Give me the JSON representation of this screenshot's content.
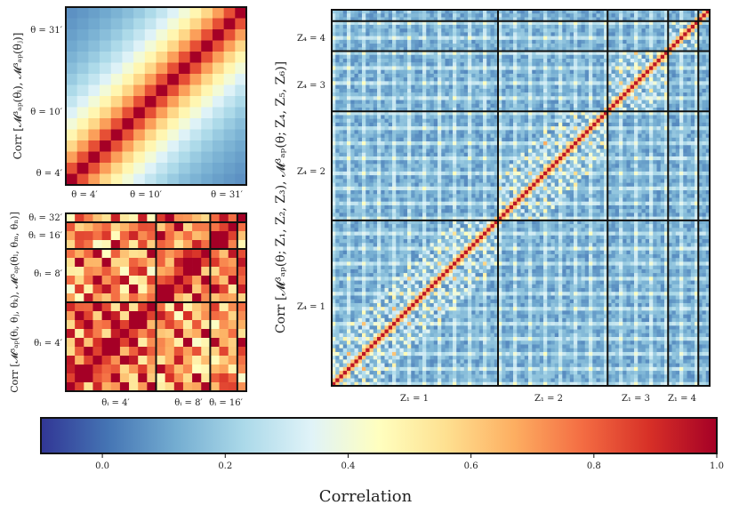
{
  "chart_data": [
    {
      "type": "heatmap",
      "name": "top-left",
      "ylabel": "Corr [𝓜³ₐₚ(θᵢ), 𝓜³ₐₚ(θⱼ)]",
      "grid_size": 16,
      "correlation_model": "exp(-|i-j| / 5.5)",
      "xticks": [
        "θ = 4′",
        "θ = 10′",
        "θ = 31′"
      ],
      "yticks": [
        "θ = 31′",
        "θ = 10′",
        "θ = 4′"
      ]
    },
    {
      "type": "heatmap",
      "name": "bottom-left",
      "ylabel": "Corr [𝓜³ₐₚ(θᵢ, θⱼ, θₖ), 𝓜³ₐₚ(θₗ, θₘ, θₙ)]",
      "grid_size": 20,
      "block_edges": [
        10,
        16,
        19
      ],
      "xticks": [
        "θᵢ = 4′",
        "θᵢ = 8′",
        "θᵢ = 16′"
      ],
      "yticks": [
        "θᵢ = 32′",
        "θₗ = 16′",
        "θₗ = 8′",
        "θₗ = 4′"
      ]
    },
    {
      "type": "heatmap",
      "name": "right",
      "ylabel": "Corr [𝓜³ₐₚ(θ; Z₁, Z₂, Z₃), 𝓜³ₐₚ(θ; Z₄, Z₅, Z₆)]",
      "grid_size": 100,
      "block_edges": [
        44,
        73,
        89,
        97
      ],
      "xticks": [
        "Z₁ = 1",
        "Z₁ = 2",
        "Z₁ = 3",
        "Z₁ = 4"
      ],
      "yticks": [
        "Z₄ = 4",
        "Z₄ = 3",
        "Z₄ = 2",
        "Z₄ = 1"
      ]
    }
  ],
  "colorbar": {
    "range": [
      -0.1,
      1.0
    ],
    "ticks": [
      "0.0",
      "0.2",
      "0.4",
      "0.6",
      "0.8",
      "1.0"
    ],
    "tick_values": [
      0.0,
      0.2,
      0.4,
      0.6,
      0.8,
      1.0
    ],
    "label": "Correlation"
  },
  "colormap": [
    "#313695",
    "#4575b4",
    "#74add1",
    "#abd9e9",
    "#e0f3f8",
    "#ffffbf",
    "#fee090",
    "#fdae61",
    "#f46d43",
    "#d73027",
    "#a50026"
  ]
}
